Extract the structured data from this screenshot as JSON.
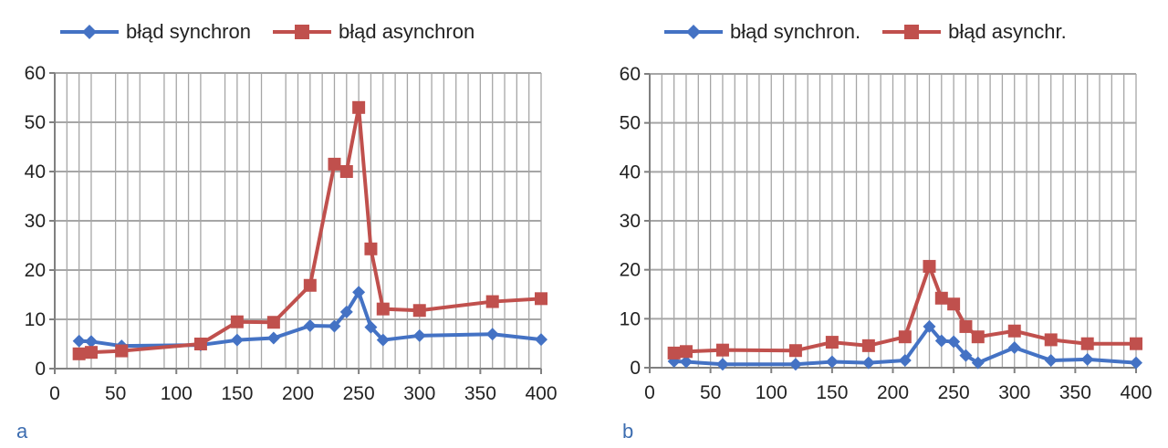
{
  "colors": {
    "synchron": "#4472C4",
    "asynchron": "#C0504D",
    "grid": "#A6A6A6",
    "axis": "#808080"
  },
  "chart_data": [
    {
      "type": "line",
      "panel_label": "a",
      "title": "",
      "xlabel": "",
      "ylabel": "",
      "xlim": [
        0,
        400
      ],
      "ylim": [
        0,
        60
      ],
      "x_ticks": [
        0,
        50,
        100,
        150,
        200,
        250,
        300,
        350,
        400
      ],
      "y_ticks": [
        0,
        10,
        20,
        30,
        40,
        50,
        60
      ],
      "x_minor_grid": [
        10,
        20,
        30,
        50,
        60,
        70,
        90,
        100,
        110,
        120,
        140,
        150,
        160,
        170,
        190,
        200,
        210,
        220,
        230,
        240,
        250,
        260,
        270,
        280,
        290,
        300,
        310,
        320,
        330,
        340,
        350,
        360,
        370,
        380,
        390,
        400
      ],
      "grid": true,
      "legend_position": "top",
      "series": [
        {
          "name": "błąd synchron",
          "marker": "diamond",
          "x": [
            20,
            30,
            55,
            120,
            150,
            180,
            210,
            230,
            240,
            250,
            260,
            270,
            300,
            360,
            400
          ],
          "y": [
            5.6,
            5.5,
            4.6,
            4.8,
            5.8,
            6.2,
            8.7,
            8.6,
            11.5,
            15.5,
            8.4,
            5.8,
            6.7,
            7.0,
            5.9
          ]
        },
        {
          "name": "błąd asynchron",
          "marker": "square",
          "x": [
            20,
            30,
            55,
            120,
            150,
            180,
            210,
            230,
            240,
            250,
            260,
            270,
            300,
            360,
            400
          ],
          "y": [
            3.0,
            3.3,
            3.6,
            5.0,
            9.5,
            9.4,
            16.9,
            41.5,
            40.0,
            53.0,
            24.3,
            12.1,
            11.8,
            13.6,
            14.2
          ]
        }
      ]
    },
    {
      "type": "line",
      "panel_label": "b",
      "title": "",
      "xlabel": "",
      "ylabel": "",
      "xlim": [
        0,
        400
      ],
      "ylim": [
        0,
        60
      ],
      "x_ticks": [
        0,
        50,
        100,
        150,
        200,
        250,
        300,
        350,
        400
      ],
      "y_ticks": [
        0,
        10,
        20,
        30,
        40,
        50,
        60
      ],
      "x_minor_grid": [
        10,
        20,
        30,
        40,
        50,
        60,
        70,
        80,
        90,
        100,
        110,
        120,
        130,
        140,
        150,
        160,
        170,
        180,
        190,
        200,
        210,
        220,
        230,
        240,
        250,
        260,
        270,
        280,
        290,
        300,
        310,
        320,
        330,
        340,
        350,
        360,
        370,
        380,
        390,
        400
      ],
      "grid": true,
      "legend_position": "top",
      "series": [
        {
          "name": "błąd synchron.",
          "marker": "diamond",
          "x": [
            20,
            30,
            60,
            120,
            150,
            180,
            210,
            230,
            240,
            250,
            260,
            270,
            300,
            330,
            360,
            400
          ],
          "y": [
            1.3,
            1.2,
            0.7,
            0.7,
            1.2,
            1.0,
            1.5,
            8.4,
            5.5,
            5.3,
            2.5,
            1.0,
            4.1,
            1.5,
            1.7,
            1.0
          ]
        },
        {
          "name": "błąd asynchr.",
          "marker": "square",
          "x": [
            20,
            30,
            60,
            120,
            150,
            180,
            210,
            230,
            240,
            250,
            260,
            270,
            300,
            330,
            360,
            400
          ],
          "y": [
            3.0,
            3.3,
            3.6,
            3.5,
            5.2,
            4.5,
            6.3,
            20.7,
            14.2,
            13.0,
            8.4,
            6.3,
            7.5,
            5.7,
            4.9,
            4.9
          ]
        }
      ]
    }
  ]
}
